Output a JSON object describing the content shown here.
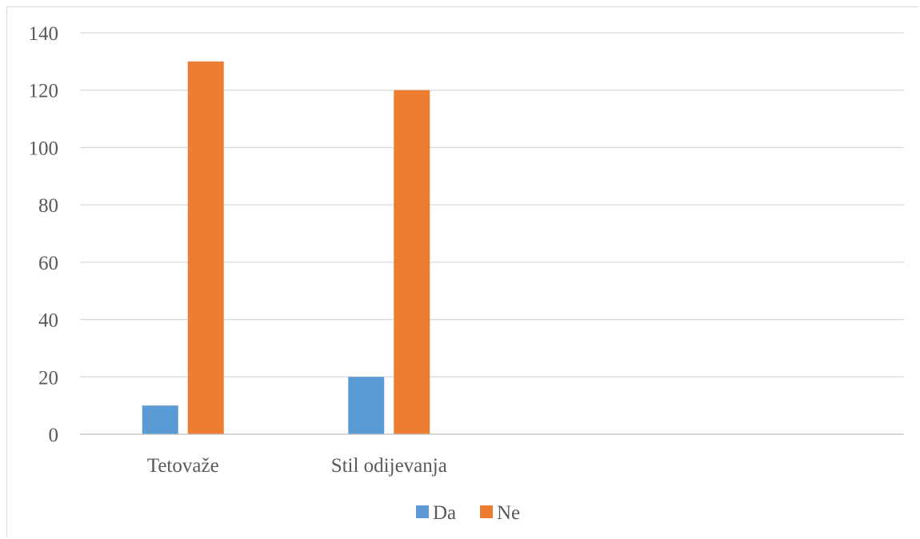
{
  "chart_data": {
    "type": "bar",
    "categories": [
      "Tetovaže",
      "Stil odijevanja",
      "",
      ""
    ],
    "series": [
      {
        "name": "Da",
        "values": [
          10,
          20,
          null,
          null
        ],
        "color": "#5b9bd5"
      },
      {
        "name": "Ne",
        "values": [
          130,
          120,
          null,
          null
        ],
        "color": "#ed7d31"
      }
    ],
    "ylim": [
      0,
      140
    ],
    "yticks": [
      0,
      20,
      40,
      60,
      80,
      100,
      120,
      140
    ],
    "grid": true,
    "legend_position": "bottom",
    "gridline_color": "#d9d9d9",
    "axis_color": "#bfbfbf"
  }
}
